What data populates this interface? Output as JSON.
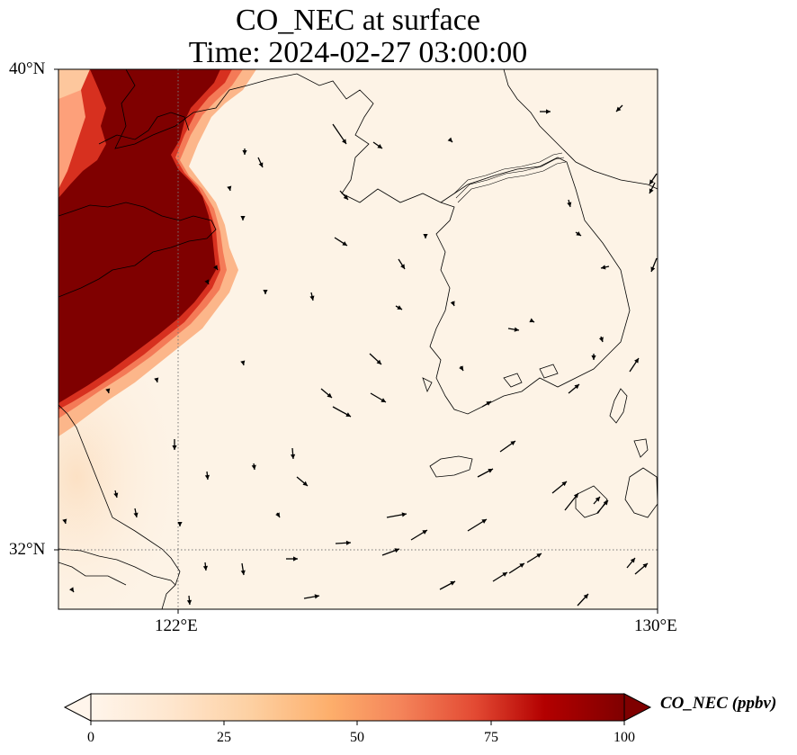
{
  "title": {
    "line1": "CO_NEC at surface",
    "line2": "Time: 2024-02-27 03:00:00"
  },
  "axes": {
    "lat_ticks": [
      "40°N",
      "32°N"
    ],
    "lon_ticks": [
      "122°E",
      "130°E"
    ],
    "lat_range": [
      31,
      40
    ],
    "lon_range": [
      120,
      130
    ],
    "gridlines": "dotted at 32°N and 122°E"
  },
  "colorbar": {
    "label": "CO_NEC (ppbv)",
    "ticks": [
      "0",
      "25",
      "50",
      "75",
      "100"
    ],
    "range": [
      0,
      100
    ],
    "extend": "both",
    "colormap": [
      "#fff5eb",
      "#fee6ce",
      "#fdd0a2",
      "#fdae6b",
      "#fd8d3c",
      "#f16913",
      "#d94801",
      "#a63603",
      "#7f2704"
    ],
    "high_color": "#7f0000"
  },
  "map_features": {
    "high_concentration_region": "eastern China coast (Shandong / Jiangsu) at ~100 ppbv",
    "background": "low values (~0-5 ppbv) over Yellow Sea, Korea and East China Sea",
    "wind_vectors": "black arrows"
  },
  "colors": {
    "max_red": "#7f0000",
    "background_low": "#fdf3e6",
    "coastline": "#000000",
    "gridline": "#777777"
  }
}
